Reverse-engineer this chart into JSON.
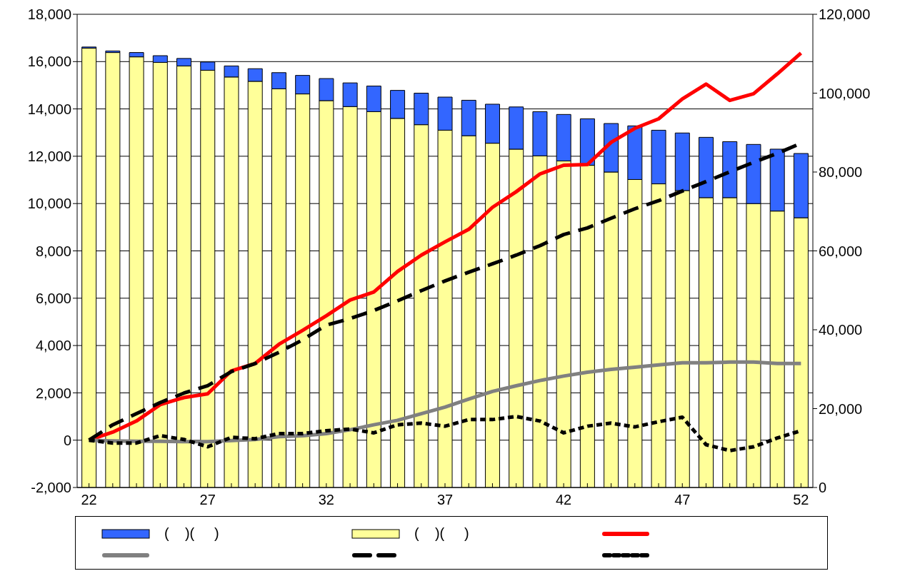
{
  "chart_data": {
    "type": "bar",
    "x": [
      22,
      23,
      24,
      25,
      26,
      27,
      28,
      29,
      30,
      31,
      32,
      33,
      34,
      35,
      36,
      37,
      38,
      39,
      40,
      41,
      42,
      43,
      44,
      45,
      46,
      47,
      48,
      49,
      50,
      51,
      52
    ],
    "xlim": [
      21.5,
      52.5
    ],
    "xticks": [
      22,
      {
        "value": 23,
        "label": null
      },
      {
        "value": 24,
        "label": null
      },
      {
        "value": 25,
        "label": null
      },
      {
        "value": 26,
        "label": null
      },
      27,
      {
        "value": 28,
        "label": null
      },
      {
        "value": 29,
        "label": null
      },
      {
        "value": 30,
        "label": null
      },
      {
        "value": 31,
        "label": null
      },
      32,
      {
        "value": 33,
        "label": null
      },
      {
        "value": 34,
        "label": null
      },
      {
        "value": 35,
        "label": null
      },
      {
        "value": 36,
        "label": null
      },
      37,
      {
        "value": 38,
        "label": null
      },
      {
        "value": 39,
        "label": null
      },
      {
        "value": 40,
        "label": null
      },
      {
        "value": 41,
        "label": null
      },
      42,
      {
        "value": 43,
        "label": null
      },
      {
        "value": 44,
        "label": null
      },
      {
        "value": 45,
        "label": null
      },
      {
        "value": 46,
        "label": null
      },
      47,
      {
        "value": 48,
        "label": null
      },
      {
        "value": 49,
        "label": null
      },
      {
        "value": 50,
        "label": null
      },
      {
        "value": 51,
        "label": null
      },
      52
    ],
    "ylim": [
      -2000,
      18000
    ],
    "yticks": [
      {
        "value": -2000,
        "label": "-2,000"
      },
      0,
      {
        "value": 2000,
        "label": "2,000"
      },
      {
        "value": 4000,
        "label": "4,000"
      },
      {
        "value": 6000,
        "label": "6,000"
      },
      {
        "value": 8000,
        "label": "8,000"
      },
      {
        "value": 10000,
        "label": "10,000"
      },
      {
        "value": 12000,
        "label": "12,000"
      },
      {
        "value": 14000,
        "label": "14,000"
      },
      {
        "value": 16000,
        "label": "16,000"
      },
      {
        "value": 18000,
        "label": "18,000"
      }
    ],
    "y2lim": [
      0,
      120000
    ],
    "y2ticks": [
      0,
      {
        "value": 20000,
        "label": "20,000"
      },
      {
        "value": 40000,
        "label": "40,000"
      },
      {
        "value": 60000,
        "label": "60,000"
      },
      {
        "value": 80000,
        "label": "80,000"
      },
      {
        "value": 100000,
        "label": "100,000"
      },
      {
        "value": 120000,
        "label": "120,000"
      }
    ],
    "stacked": true,
    "grid": "y",
    "legend": "bottom",
    "marker": "none",
    "series": [
      {
        "name": "(    )(     )",
        "axis": "y2",
        "color": "#ffff99",
        "values": [
          111400,
          110300,
          109200,
          107800,
          106900,
          105800,
          104100,
          103000,
          101100,
          99800,
          98100,
          96600,
          95300,
          93600,
          92000,
          90600,
          89200,
          87300,
          85800,
          84100,
          82800,
          81700,
          80000,
          78100,
          77000,
          75300,
          73500,
          73500,
          72000,
          70100,
          68400
        ]
      },
      {
        "name": "(    )(     )",
        "axis": "y2",
        "color": "#3366ff",
        "values": [
          300,
          400,
          1100,
          1700,
          1900,
          2100,
          2800,
          3200,
          4100,
          4700,
          5600,
          6000,
          6500,
          7100,
          8000,
          8400,
          9000,
          9900,
          10700,
          11200,
          11800,
          11800,
          12300,
          13600,
          13600,
          14600,
          15300,
          14200,
          15000,
          15700,
          16300
        ]
      },
      {
        "type": "line",
        "color": "#ff0000",
        "line_style": "solid",
        "values": [
          0,
          340,
          810,
          1500,
          1800,
          1960,
          2930,
          3240,
          4050,
          4640,
          5260,
          5920,
          6260,
          7130,
          7820,
          8380,
          8910,
          9840,
          10500,
          11250,
          11620,
          11650,
          12590,
          13180,
          13580,
          14420,
          15050,
          14360,
          14640,
          15480,
          16360
        ]
      },
      {
        "type": "line",
        "color": "#808080",
        "line_style": "solid",
        "values": [
          0,
          -30,
          -50,
          -50,
          -60,
          -60,
          -20,
          30,
          150,
          190,
          280,
          440,
          650,
          840,
          1120,
          1400,
          1740,
          2060,
          2300,
          2520,
          2710,
          2870,
          2990,
          3080,
          3180,
          3270,
          3270,
          3300,
          3300,
          3240,
          3240
        ]
      },
      {
        "type": "line",
        "color": "#000000",
        "line_style": "dashed",
        "values": [
          0,
          650,
          1120,
          1590,
          1990,
          2300,
          2900,
          3240,
          3710,
          4240,
          4860,
          5140,
          5480,
          5890,
          6320,
          6730,
          7100,
          7450,
          7820,
          8220,
          8690,
          8970,
          9380,
          9780,
          10120,
          10530,
          10930,
          11340,
          11740,
          12120,
          12550
        ]
      },
      {
        "type": "line",
        "color": "#000000",
        "line_style": "dotted",
        "values": [
          0,
          -120,
          -120,
          190,
          30,
          -280,
          120,
          60,
          280,
          280,
          400,
          470,
          310,
          650,
          720,
          590,
          870,
          870,
          1000,
          810,
          310,
          590,
          720,
          560,
          780,
          970,
          -190,
          -440,
          -280,
          90,
          400
        ]
      }
    ]
  }
}
